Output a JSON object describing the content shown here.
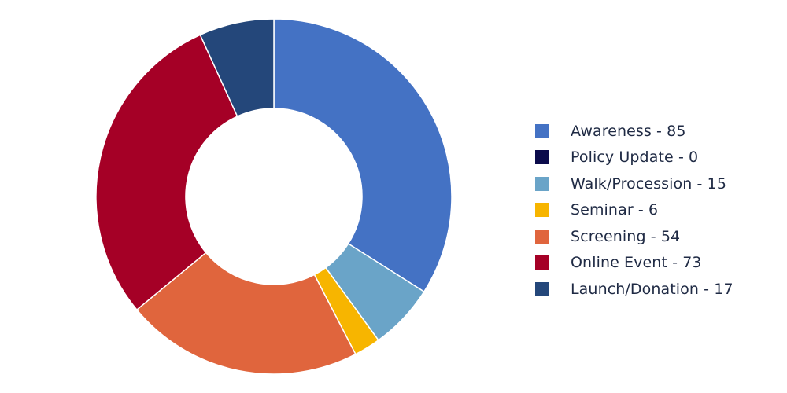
{
  "chart_data": {
    "type": "pie",
    "donut": true,
    "legend_position": "right",
    "slices": [
      {
        "name": "Awareness",
        "value": 85,
        "color": "#4472C4",
        "label": "Awareness - 85"
      },
      {
        "name": "Policy Update",
        "value": 0,
        "color": "#0B0B4B",
        "label": "Policy Update - 0"
      },
      {
        "name": "Walk/Procession",
        "value": 15,
        "color": "#6AA4C8",
        "label": "Walk/Procession - 15"
      },
      {
        "name": "Seminar",
        "value": 6,
        "color": "#F7B500",
        "label": "Seminar - 6"
      },
      {
        "name": "Screening",
        "value": 54,
        "color": "#E0653D",
        "label": "Screening - 54"
      },
      {
        "name": "Online Event",
        "value": 73,
        "color": "#A50026",
        "label": "Online Event - 73"
      },
      {
        "name": "Launch/Donation",
        "value": 17,
        "color": "#24477A",
        "label": "Launch/Donation - 17"
      }
    ]
  }
}
